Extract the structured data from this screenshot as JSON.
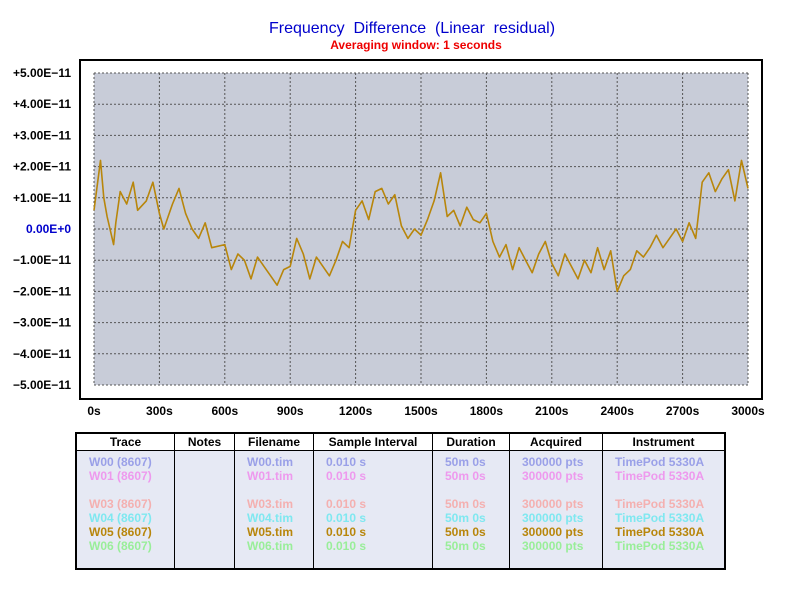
{
  "chart_data": {
    "type": "line",
    "title": "Frequency  Difference  (Linear  residual)",
    "subtitle": "Averaging window: 1 seconds",
    "xlabel": "",
    "ylabel": "",
    "xlim": [
      0,
      3000
    ],
    "ylim": [
      -5e-11,
      5e-11
    ],
    "grid": true,
    "x_ticks": [
      "0s",
      "300s",
      "600s",
      "900s",
      "1200s",
      "1500s",
      "1800s",
      "2100s",
      "2400s",
      "2700s",
      "3000s"
    ],
    "y_ticks": [
      "+5.00E−11",
      "+4.00E−11",
      "+3.00E−11",
      "+2.00E−11",
      "+1.00E−11",
      "0.00E+0",
      "−1.00E−11",
      "−2.00E−11",
      "−3.00E−11",
      "−4.00E−11",
      "−5.00E−11"
    ],
    "series": [
      {
        "name": "W05 (8607)",
        "color": "#b8860b",
        "x_unit": "s",
        "x": [
          0,
          30,
          45,
          60,
          90,
          100,
          120,
          150,
          180,
          200,
          240,
          270,
          300,
          320,
          360,
          390,
          420,
          450,
          480,
          510,
          540,
          600,
          630,
          660,
          690,
          720,
          750,
          780,
          810,
          840,
          870,
          900,
          930,
          960,
          990,
          1020,
          1050,
          1080,
          1110,
          1140,
          1170,
          1200,
          1230,
          1260,
          1290,
          1320,
          1350,
          1380,
          1410,
          1440,
          1470,
          1500,
          1530,
          1560,
          1590,
          1620,
          1650,
          1680,
          1710,
          1740,
          1770,
          1800,
          1830,
          1860,
          1890,
          1920,
          1950,
          1980,
          2010,
          2040,
          2070,
          2100,
          2130,
          2160,
          2190,
          2220,
          2250,
          2280,
          2310,
          2340,
          2370,
          2400,
          2430,
          2460,
          2490,
          2520,
          2550,
          2580,
          2610,
          2640,
          2670,
          2700,
          2730,
          2760,
          2790,
          2820,
          2850,
          2880,
          2910,
          2940,
          2970,
          3000
        ],
        "y": [
          6e-12,
          2.2e-11,
          1e-11,
          4e-12,
          -5e-12,
          2e-12,
          1.2e-11,
          8e-12,
          1.5e-11,
          6e-12,
          9e-12,
          1.5e-11,
          5e-12,
          0.0,
          8e-12,
          1.3e-11,
          5e-12,
          0.0,
          -3e-12,
          2e-12,
          -6e-12,
          -5e-12,
          -1.3e-11,
          -8e-12,
          -1e-11,
          -1.6e-11,
          -9e-12,
          -1.2e-11,
          -1.5e-11,
          -1.8e-11,
          -1.3e-11,
          -1.2e-11,
          -3e-12,
          -8e-12,
          -1.6e-11,
          -9e-12,
          -1.2e-11,
          -1.5e-11,
          -1e-11,
          -4e-12,
          -6e-12,
          6e-12,
          9e-12,
          3e-12,
          1.2e-11,
          1.3e-11,
          8e-12,
          1.1e-11,
          1e-12,
          -3e-12,
          0.0,
          -2e-12,
          3e-12,
          9e-12,
          1.8e-11,
          4e-12,
          6e-12,
          1e-12,
          7e-12,
          3e-12,
          2e-12,
          5e-12,
          -4e-12,
          -9e-12,
          -5e-12,
          -1.3e-11,
          -6e-12,
          -1e-11,
          -1.4e-11,
          -8e-12,
          -4e-12,
          -1.1e-11,
          -1.5e-11,
          -8e-12,
          -1.2e-11,
          -1.6e-11,
          -1e-11,
          -1.4e-11,
          -6e-12,
          -1.3e-11,
          -7e-12,
          -2e-11,
          -1.5e-11,
          -1.3e-11,
          -7e-12,
          -9e-12,
          -6e-12,
          -2e-12,
          -6e-12,
          -3e-12,
          0.0,
          -4e-12,
          2e-12,
          -3e-12,
          1.5e-11,
          1.8e-11,
          1.2e-11,
          1.6e-11,
          1.9e-11,
          9e-12,
          2.2e-11,
          1.3e-11
        ]
      }
    ]
  },
  "legend_table": {
    "headers": [
      "Trace",
      "Notes",
      "Filename",
      "Sample Interval",
      "Duration",
      "Acquired",
      "Instrument"
    ],
    "rows": [
      {
        "trace": "W00 (8607)",
        "notes": "",
        "filename": "W00.tim",
        "interval": "0.010 s",
        "duration": "50m 0s",
        "acquired": "300000 pts",
        "instrument": "TimePod 5330A",
        "color": "#9aa0e8"
      },
      {
        "trace": "W01 (8607)",
        "notes": "",
        "filename": "W01.tim",
        "interval": "0.010 s",
        "duration": "50m 0s",
        "acquired": "300000 pts",
        "instrument": "TimePod 5330A",
        "color": "#ee99ee"
      },
      {
        "trace": "",
        "notes": "",
        "filename": "",
        "interval": "",
        "duration": "",
        "acquired": "",
        "instrument": "",
        "color": "#e6e9f4"
      },
      {
        "trace": "W03 (8607)",
        "notes": "",
        "filename": "W03.tim",
        "interval": "0.010 s",
        "duration": "50m 0s",
        "acquired": "300000 pts",
        "instrument": "TimePod 5330A",
        "color": "#f4b0b0"
      },
      {
        "trace": "W04 (8607)",
        "notes": "",
        "filename": "W04.tim",
        "interval": "0.010 s",
        "duration": "50m 0s",
        "acquired": "300000 pts",
        "instrument": "TimePod 5330A",
        "color": "#7fe8f0"
      },
      {
        "trace": "W05 (8607)",
        "notes": "",
        "filename": "W05.tim",
        "interval": "0.010 s",
        "duration": "50m 0s",
        "acquired": "300000 pts",
        "instrument": "TimePod 5330A",
        "color": "#b8860b"
      },
      {
        "trace": "W06 (8607)",
        "notes": "",
        "filename": "W06.tim",
        "interval": "0.010 s",
        "duration": "50m 0s",
        "acquired": "300000 pts",
        "instrument": "TimePod 5330A",
        "color": "#99ee99"
      }
    ]
  }
}
